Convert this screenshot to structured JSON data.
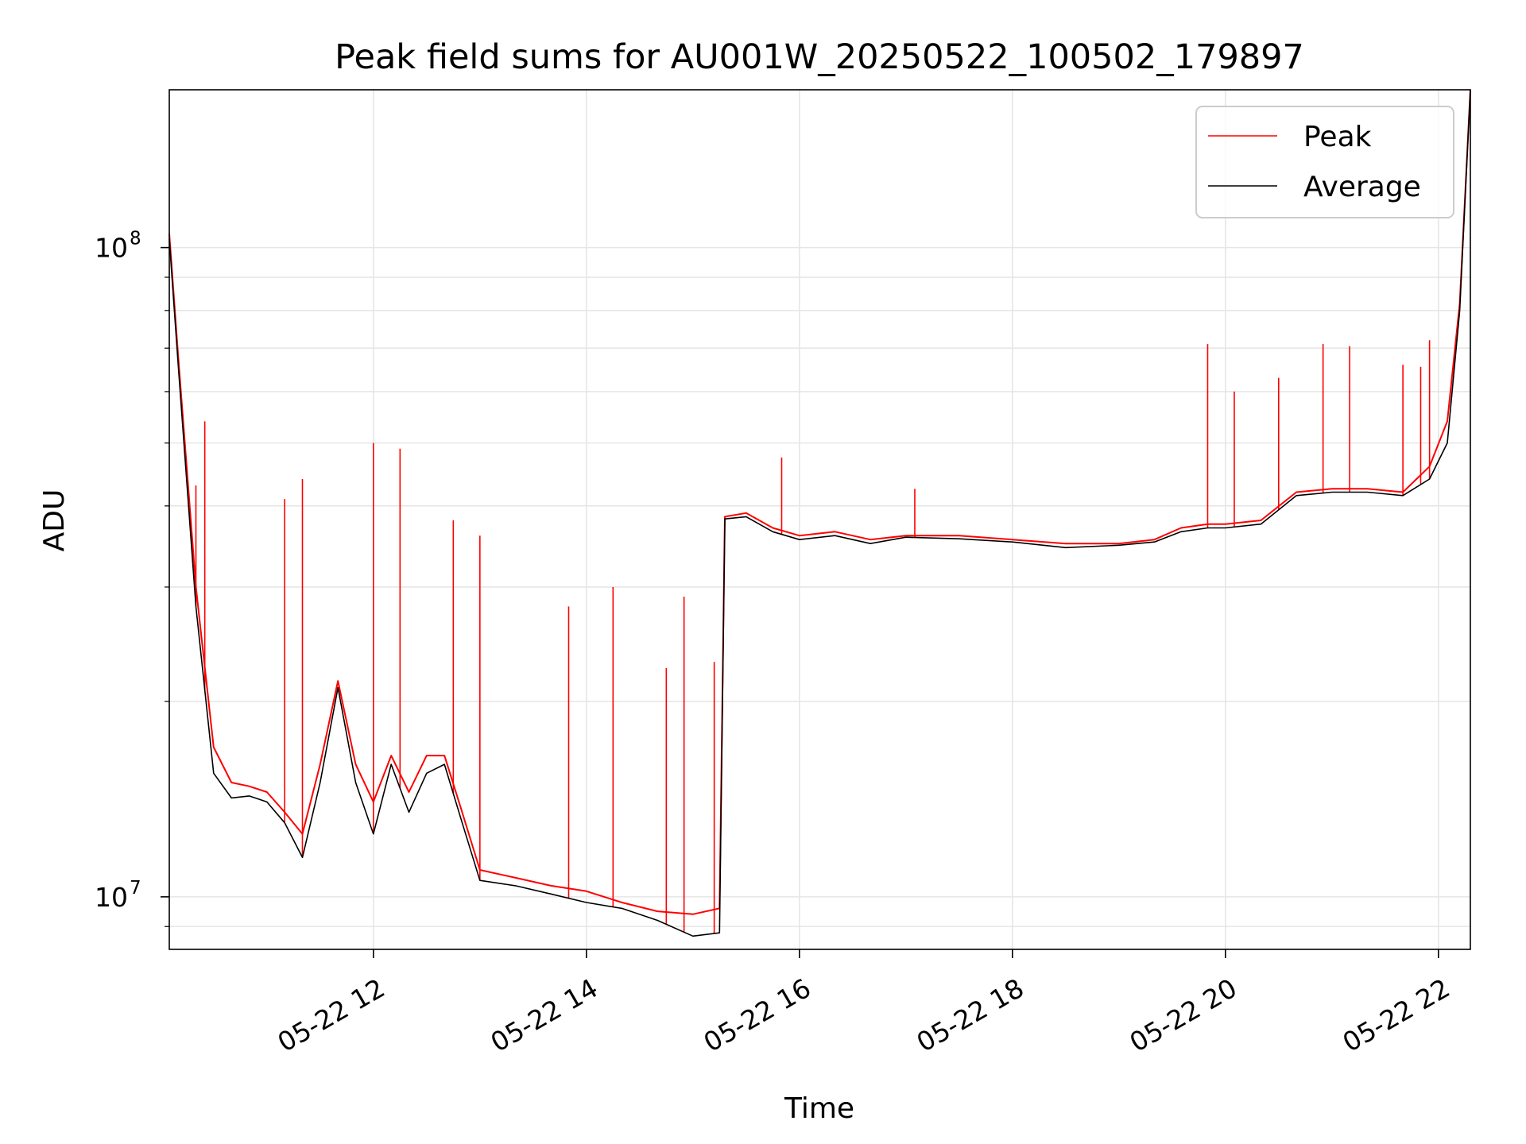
{
  "chart_data": {
    "type": "line",
    "title": "Peak field sums for AU001W_20250522_100502_179897",
    "xlabel": "Time",
    "ylabel": "ADU",
    "yscale": "log",
    "xlim": [
      "05-22 10:05",
      "05-22 22:18"
    ],
    "ylim": [
      8300000,
      175000000
    ],
    "grid": true,
    "legend_position": "top-right",
    "x_ticks": [
      "05-22 12",
      "05-22 14",
      "05-22 16",
      "05-22 18",
      "05-22 20",
      "05-22 22"
    ],
    "y_ticks": [
      {
        "value": 10000000,
        "base": "10",
        "exp": "7"
      },
      {
        "value": 100000000,
        "base": "10",
        "exp": "8"
      }
    ],
    "series": [
      {
        "name": "Peak",
        "color": "#ff0000",
        "x": [
          "05-22 10:05",
          "05-22 10:10",
          "05-22 10:20",
          "05-22 10:30",
          "05-22 10:40",
          "05-22 10:50",
          "05-22 11:00",
          "05-22 11:10",
          "05-22 11:20",
          "05-22 11:30",
          "05-22 11:40",
          "05-22 11:50",
          "05-22 12:00",
          "05-22 12:10",
          "05-22 12:20",
          "05-22 12:30",
          "05-22 12:40",
          "05-22 12:50",
          "05-22 13:00",
          "05-22 13:20",
          "05-22 13:40",
          "05-22 14:00",
          "05-22 14:20",
          "05-22 14:40",
          "05-22 15:00",
          "05-22 15:15",
          "05-22 15:18",
          "05-22 15:30",
          "05-22 15:45",
          "05-22 16:00",
          "05-22 16:20",
          "05-22 16:40",
          "05-22 17:00",
          "05-22 17:30",
          "05-22 18:00",
          "05-22 18:30",
          "05-22 19:00",
          "05-22 19:20",
          "05-22 19:35",
          "05-22 19:50",
          "05-22 20:00",
          "05-22 20:20",
          "05-22 20:40",
          "05-22 21:00",
          "05-22 21:20",
          "05-22 21:40",
          "05-22 21:55",
          "05-22 22:05",
          "05-22 22:12",
          "05-22 22:18"
        ],
        "values": [
          105000000,
          68000000,
          30000000,
          17000000,
          15000000,
          14800000,
          14500000,
          13500000,
          12500000,
          16000000,
          21500000,
          16000000,
          14000000,
          16500000,
          14500000,
          16500000,
          16500000,
          13500000,
          11000000,
          10700000,
          10400000,
          10200000,
          9800000,
          9500000,
          9400000,
          9600000,
          38500000,
          39000000,
          37000000,
          36000000,
          36500000,
          35500000,
          36000000,
          36000000,
          35500000,
          35000000,
          35000000,
          35500000,
          37000000,
          37500000,
          37500000,
          38000000,
          42000000,
          42500000,
          42500000,
          42000000,
          46000000,
          54000000,
          82000000,
          175000000
        ],
        "spikes": [
          {
            "x": "05-22 10:20",
            "value": 43000000
          },
          {
            "x": "05-22 10:25",
            "value": 54000000
          },
          {
            "x": "05-22 11:10",
            "value": 41000000
          },
          {
            "x": "05-22 11:20",
            "value": 44000000
          },
          {
            "x": "05-22 12:00",
            "value": 50000000
          },
          {
            "x": "05-22 12:15",
            "value": 49000000
          },
          {
            "x": "05-22 12:45",
            "value": 38000000
          },
          {
            "x": "05-22 13:00",
            "value": 36000000
          },
          {
            "x": "05-22 13:50",
            "value": 28000000
          },
          {
            "x": "05-22 14:15",
            "value": 30000000
          },
          {
            "x": "05-22 14:45",
            "value": 22500000
          },
          {
            "x": "05-22 14:55",
            "value": 29000000
          },
          {
            "x": "05-22 15:12",
            "value": 23000000
          },
          {
            "x": "05-22 15:50",
            "value": 47500000
          },
          {
            "x": "05-22 17:05",
            "value": 42500000
          },
          {
            "x": "05-22 19:50",
            "value": 71000000
          },
          {
            "x": "05-22 20:05",
            "value": 60000000
          },
          {
            "x": "05-22 20:30",
            "value": 63000000
          },
          {
            "x": "05-22 20:55",
            "value": 71000000
          },
          {
            "x": "05-22 21:10",
            "value": 70500000
          },
          {
            "x": "05-22 21:40",
            "value": 66000000
          },
          {
            "x": "05-22 21:50",
            "value": 65500000
          },
          {
            "x": "05-22 21:55",
            "value": 72000000
          }
        ]
      },
      {
        "name": "Average",
        "color": "#000000",
        "x": [
          "05-22 10:05",
          "05-22 10:10",
          "05-22 10:20",
          "05-22 10:30",
          "05-22 10:40",
          "05-22 10:50",
          "05-22 11:00",
          "05-22 11:10",
          "05-22 11:20",
          "05-22 11:30",
          "05-22 11:40",
          "05-22 11:50",
          "05-22 12:00",
          "05-22 12:10",
          "05-22 12:20",
          "05-22 12:30",
          "05-22 12:40",
          "05-22 12:50",
          "05-22 13:00",
          "05-22 13:20",
          "05-22 13:40",
          "05-22 14:00",
          "05-22 14:20",
          "05-22 14:40",
          "05-22 15:00",
          "05-22 15:15",
          "05-22 15:18",
          "05-22 15:30",
          "05-22 15:45",
          "05-22 16:00",
          "05-22 16:20",
          "05-22 16:40",
          "05-22 17:00",
          "05-22 17:30",
          "05-22 18:00",
          "05-22 18:30",
          "05-22 19:00",
          "05-22 19:20",
          "05-22 19:35",
          "05-22 19:50",
          "05-22 20:00",
          "05-22 20:20",
          "05-22 20:40",
          "05-22 21:00",
          "05-22 21:20",
          "05-22 21:40",
          "05-22 21:55",
          "05-22 22:05",
          "05-22 22:12",
          "05-22 22:18"
        ],
        "values": [
          103000000,
          66000000,
          28000000,
          15500000,
          14200000,
          14300000,
          14000000,
          13000000,
          11500000,
          15000000,
          21000000,
          15000000,
          12500000,
          16000000,
          13500000,
          15500000,
          16000000,
          13000000,
          10600000,
          10400000,
          10100000,
          9800000,
          9600000,
          9200000,
          8700000,
          8800000,
          38200000,
          38500000,
          36500000,
          35500000,
          36000000,
          35000000,
          35800000,
          35600000,
          35200000,
          34500000,
          34800000,
          35200000,
          36500000,
          37000000,
          37000000,
          37500000,
          41500000,
          42000000,
          42000000,
          41500000,
          44000000,
          50000000,
          80000000,
          175000000
        ]
      }
    ]
  }
}
